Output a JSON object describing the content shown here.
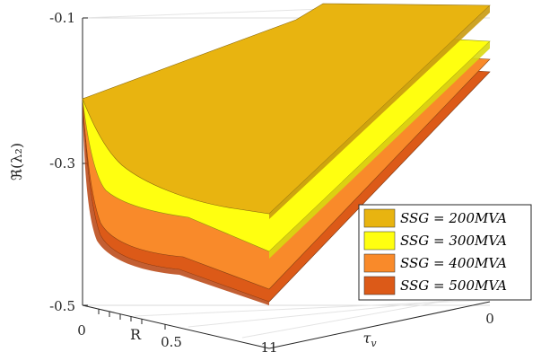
{
  "chart_data": {
    "type": "surface",
    "title": "",
    "ylabel": "ℜ(λ₂)",
    "xlabel": "R",
    "tau_label": "τ",
    "tau_sub": "v",
    "zlim": [
      -0.5,
      -0.1
    ],
    "z_ticks": [
      "-0.1",
      "-0.3",
      "-0.5"
    ],
    "r_ticks": [
      "0",
      "0.5"
    ],
    "tau_ticks": [
      "0",
      "11"
    ],
    "grid": true,
    "legend_position": "right",
    "series": [
      {
        "name": "S_SG = 200MVA",
        "legend": "SSG = 200MVA",
        "color": "#E8B410"
      },
      {
        "name": "S_SG = 300MVA",
        "legend": "SSG = 300MVA",
        "color": "#FFFF10"
      },
      {
        "name": "S_SG = 400MVA",
        "legend": "SSG = 400MVA",
        "color": "#F98A2A"
      },
      {
        "name": "S_SG = 500MVA",
        "legend": "SSG = 500MVA",
        "color": "#DC5A18"
      }
    ]
  }
}
